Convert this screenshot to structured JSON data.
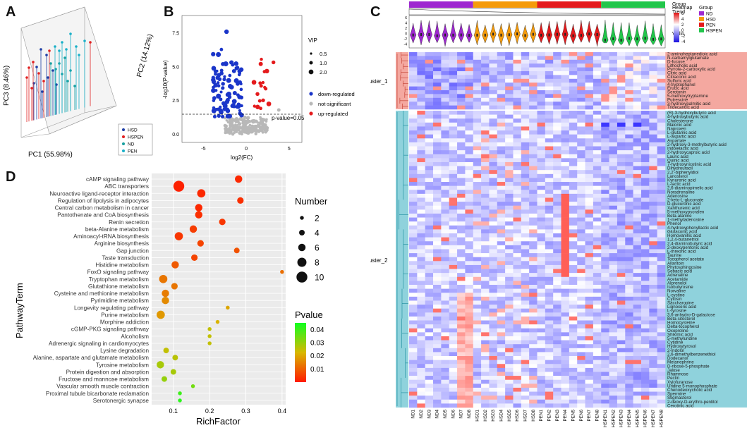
{
  "panel_labels": {
    "a": "A",
    "b": "B",
    "c": "C",
    "d": "D"
  },
  "panelA": {
    "axes": {
      "x": "PC1 (55.98%)",
      "y": "PC3 (8.46%)",
      "z": "PC2 (14.12%)"
    },
    "legend": [
      {
        "name": "HSD",
        "color": "#1f3fa6"
      },
      {
        "name": "HSPEN",
        "color": "#e02020"
      },
      {
        "name": "ND",
        "color": "#18a0a0"
      },
      {
        "name": "PEN",
        "color": "#1ab0c8"
      }
    ]
  },
  "panelB": {
    "ylabel": "-log10(P-value)",
    "xlabel": "log2(FC)",
    "threshold_label": "p-value=0.05",
    "yticks": [
      "0.0",
      "2.5",
      "5.0",
      "7.5"
    ],
    "xticks": [
      "-5",
      "0",
      "5"
    ],
    "legend_title": "VIP",
    "sizes": [
      {
        "label": "0.5"
      },
      {
        "label": "1.0"
      },
      {
        "label": "2.0"
      }
    ],
    "categories": [
      {
        "label": "down-regulated",
        "color": "#1a35c9"
      },
      {
        "label": "not-significant",
        "color": "#b8b8b8"
      },
      {
        "label": "up-regulated",
        "color": "#e41a1c"
      }
    ]
  },
  "panelC": {
    "top_labels": {
      "group": "Group",
      "trend": "Trend",
      "violin": "Violin"
    },
    "heat_title": "Heatmap",
    "heat_ticks": [
      "6",
      "4",
      "2",
      "0",
      "-2",
      "-4"
    ],
    "group_legend_title": "Group",
    "groups": [
      {
        "name": "ND",
        "color": "#9e28d0"
      },
      {
        "name": "HSD",
        "color": "#f59b0b"
      },
      {
        "name": "PEN",
        "color": "#e41a1c"
      },
      {
        "name": "HSPEN",
        "color": "#22c64b"
      }
    ],
    "clusters": [
      "cluster_1",
      "cluster_2"
    ],
    "samples": [
      "ND1",
      "ND2",
      "ND3",
      "ND4",
      "ND5",
      "ND6",
      "ND7",
      "ND8",
      "HSD1",
      "HSD2",
      "HSD3",
      "HSD4",
      "HSD5",
      "HSD6",
      "HSD7",
      "HSD8",
      "PEN1",
      "PEN2",
      "PEN3",
      "PEN4",
      "PEN5",
      "PEN6",
      "PEN7",
      "PEN8",
      "HSPEN1",
      "HSPEN2",
      "HSPEN3",
      "HSPEN4",
      "HSPEN5",
      "HSPEN6",
      "HSPEN7",
      "HSPEN8"
    ],
    "cluster1_metabolites": [
      "2-aminoheptanedioic acid",
      "N-carbamylglutamate",
      "D-fucose",
      "Lithocholic acid",
      "Pyrrole-2-carboxylic acid",
      "Citric acid",
      "Citraconic acid",
      "Sulfuric acid",
      "4-tryptophanol",
      "Erucic acid",
      "Serotonin",
      "5-methoxytryptamine",
      "Putrescine",
      "3-hydroxypalmitic acid",
      "Tridecanoic acid"
    ],
    "cluster2_metabolites": [
      "(R)-3-hydroxybutyric acid",
      "4-hydroxybutyric acid",
      "Cholesterone",
      "Malonic acid",
      "Naproxen",
      "L-glutamic acid",
      "L-aspartic acid",
      "Aspartate",
      "2-hydroxy-3-methylbutyric acid",
      "Indolelactic acid",
      "2-hydroxycaproic acid",
      "Lauric acid",
      "Quinic acid",
      "7-hydroxynicotinic acid",
      "Dihydrouracil",
      "2,2'-biphenyldiol",
      "Lanosterol",
      "Kynurenic acid",
      "L-lactic acid",
      "2,6-diaminopimelic acid",
      "Noradrenaline",
      "Adenosine",
      "2-keto-L-gluconate",
      "D-glucuronic acid",
      "Xanthurenic acid",
      "5-methoxypsoralen",
      "Beta-alanine",
      "1-methyladenosine",
      "Phenol",
      "4-hydroxyphenyllactic acid",
      "Glutaconic acid",
      "Homovanillic acid",
      "1,2,4-butanetriol",
      "2,4-diaminobutyric acid",
      "2-deoxypentonic acid",
      "L-threonic acid",
      "Taurine",
      "Tocopherol acetate",
      "Allantoin",
      "Phytosphingosine",
      "Sebacic acid",
      "Adrenaline",
      "Acetamide",
      "Alprenolol",
      "Isobutyrosine",
      "Norvaline",
      "L-cystine",
      "Cytosin",
      "Saccharopine",
      "Lignoceric acid",
      "L-tyrosine",
      "3,6-anhydro-D-galactose",
      "Beta-sitosterol",
      "Homocysteine",
      "Delta-tocopherol",
      "Oxoproline",
      "Shikimic acid",
      "5-methyluridine",
      "Cytidine",
      "Hydroxytyrosol",
      "2-Indolol",
      "2,6-dimethylbenzenethiol",
      "Dodecanol",
      "Metanephrine",
      "D-ribose-5-phosphate",
      "Jalose",
      "Rhamnose",
      "Pectin",
      "Xylofuranose",
      "Uridine 5-monophosphate",
      "Chenodeoxycholic acid",
      "Spermine",
      "Stigmasterol",
      "2-deoxy-D-erythro-pentitol",
      "Cerotinic acid"
    ]
  },
  "panelD": {
    "ylabel": "PathwayTerm",
    "xlabel": "RichFactor",
    "xticks": [
      "0.1",
      "0.2",
      "0.3",
      "0.4"
    ],
    "xlim": [
      0.04,
      0.41
    ],
    "number_title": "Number",
    "number_ticks": [
      2,
      4,
      6,
      8,
      10
    ],
    "pvalue_title": "Pvalue",
    "pvalue_ticks": [
      "0.04",
      "0.03",
      "0.02",
      "0.01"
    ],
    "pvalue_range": [
      0.0,
      0.045
    ],
    "terms": [
      {
        "name": "cAMP signaling pathway",
        "rich": 0.28,
        "num": 6,
        "p": 0.002
      },
      {
        "name": "ABC transporters",
        "rich": 0.115,
        "num": 10,
        "p": 0.001
      },
      {
        "name": "Neuroactive ligand-receptor interaction",
        "rich": 0.177,
        "num": 7,
        "p": 0.002
      },
      {
        "name": "Regulation of lipolysis in adipocytes",
        "rich": 0.285,
        "num": 5,
        "p": 0.003
      },
      {
        "name": "Central carbon metabolism in cancer",
        "rich": 0.17,
        "num": 6,
        "p": 0.002
      },
      {
        "name": "Pantothenate and CoA biosynthesis",
        "rich": 0.17,
        "num": 6,
        "p": 0.003
      },
      {
        "name": "Renin secretion",
        "rich": 0.235,
        "num": 5,
        "p": 0.004
      },
      {
        "name": "beta-Alanine metabolism",
        "rich": 0.155,
        "num": 6,
        "p": 0.005
      },
      {
        "name": "Aminoacyl-tRNA biosynthesis",
        "rich": 0.115,
        "num": 7,
        "p": 0.004
      },
      {
        "name": "Arginine biosynthesis",
        "rich": 0.175,
        "num": 5,
        "p": 0.006
      },
      {
        "name": "Gap junction",
        "rich": 0.275,
        "num": 4,
        "p": 0.008
      },
      {
        "name": "Taste transduction",
        "rich": 0.158,
        "num": 5,
        "p": 0.006
      },
      {
        "name": "Histidine metabolism",
        "rich": 0.105,
        "num": 6,
        "p": 0.009
      },
      {
        "name": "FoxO signaling pathway",
        "rich": 0.4,
        "num": 2,
        "p": 0.012
      },
      {
        "name": "Tryptophan metabolism",
        "rich": 0.072,
        "num": 7,
        "p": 0.013
      },
      {
        "name": "Glutathione metabolism",
        "rich": 0.103,
        "num": 5,
        "p": 0.013
      },
      {
        "name": "Cysteine and methionine metabolism",
        "rich": 0.078,
        "num": 6,
        "p": 0.014
      },
      {
        "name": "Pyrimidine metabolism",
        "rich": 0.078,
        "num": 6,
        "p": 0.016
      },
      {
        "name": "Longevity regulating pathway",
        "rich": 0.25,
        "num": 2,
        "p": 0.02
      },
      {
        "name": "Purine metabolism",
        "rich": 0.065,
        "num": 7,
        "p": 0.018
      },
      {
        "name": "Morphine addiction",
        "rich": 0.222,
        "num": 2,
        "p": 0.022
      },
      {
        "name": "cGMP-PKG signaling pathway",
        "rich": 0.2,
        "num": 2,
        "p": 0.025
      },
      {
        "name": "Alcoholism",
        "rich": 0.2,
        "num": 2,
        "p": 0.025
      },
      {
        "name": "Adrenergic signaling in cardiomyocytes",
        "rich": 0.2,
        "num": 2,
        "p": 0.025
      },
      {
        "name": "Lysine degradation",
        "rich": 0.08,
        "num": 4,
        "p": 0.025
      },
      {
        "name": "Alanine, aspartate and glutamate metabolism",
        "rich": 0.105,
        "num": 4,
        "p": 0.026
      },
      {
        "name": "Tyrosine metabolism",
        "rich": 0.064,
        "num": 6,
        "p": 0.028
      },
      {
        "name": "Protein digestion and absorption",
        "rich": 0.1,
        "num": 4,
        "p": 0.028
      },
      {
        "name": "Fructose and mannose metabolism",
        "rich": 0.075,
        "num": 4,
        "p": 0.03
      },
      {
        "name": "Vascular smooth muscle contraction",
        "rich": 0.154,
        "num": 2,
        "p": 0.034
      },
      {
        "name": "Proximal tubule bicarbonate reclamation",
        "rich": 0.118,
        "num": 2,
        "p": 0.04
      },
      {
        "name": "Serotonergic synapse",
        "rich": 0.118,
        "num": 2,
        "p": 0.042
      }
    ]
  }
}
